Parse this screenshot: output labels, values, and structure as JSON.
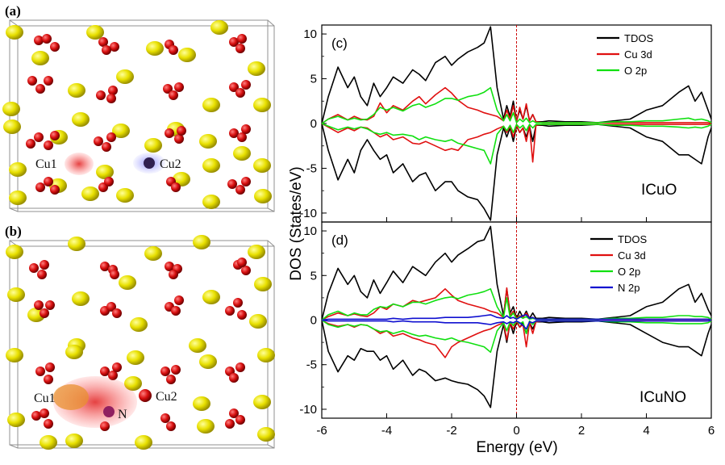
{
  "panels": {
    "a": {
      "label": "(a)",
      "atom_labels": [
        "Cu1",
        "Cu2"
      ]
    },
    "b": {
      "label": "(b)",
      "atom_labels": [
        "Cu1",
        "Cu2",
        "N"
      ]
    }
  },
  "colors": {
    "yellow_atom": "#e8e000",
    "red_atom": "#d81010",
    "TDOS": "#000000",
    "Cu 3d": "#e01010",
    "O 2p": "#10e010",
    "N 2p": "#1010d0",
    "fermi_line": "#cc0000"
  },
  "chart_data": [
    {
      "type": "line",
      "panel": "(c)",
      "name": "ICuO",
      "xlim": [
        -6,
        6
      ],
      "ylim": [
        -11,
        11
      ],
      "xticks": [
        -6,
        -4,
        -2,
        0,
        2,
        4,
        6
      ],
      "yticks": [
        -10,
        -5,
        0,
        5,
        10
      ],
      "ylabel": "DOS (States/eV)",
      "xlabel": "Energy (eV)",
      "fermi_level": 0,
      "legend": [
        "TDOS",
        "Cu 3d",
        "O 2p"
      ],
      "x": [
        -6.0,
        -5.8,
        -5.5,
        -5.2,
        -5.0,
        -4.8,
        -4.6,
        -4.4,
        -4.2,
        -4.0,
        -3.8,
        -3.5,
        -3.2,
        -3.0,
        -2.8,
        -2.5,
        -2.2,
        -2.0,
        -1.8,
        -1.5,
        -1.2,
        -1.0,
        -0.8,
        -0.6,
        -0.4,
        -0.3,
        -0.2,
        -0.1,
        0.0,
        0.1,
        0.2,
        0.3,
        0.4,
        0.5,
        0.6,
        0.8,
        1.0,
        1.5,
        2.0,
        2.5,
        3.0,
        3.5,
        4.0,
        4.5,
        5.0,
        5.3,
        5.5,
        5.7,
        5.9,
        6.0
      ],
      "series": [
        {
          "name": "TDOS",
          "values": [
            0.0,
            3.0,
            6.3,
            4.0,
            5.2,
            3.0,
            2.0,
            4.5,
            3.0,
            4.0,
            5.2,
            4.5,
            6.0,
            5.5,
            4.8,
            6.8,
            7.5,
            6.5,
            7.2,
            8.0,
            8.5,
            9.0,
            10.8,
            4.0,
            0.5,
            2.0,
            0.8,
            2.5,
            0.3,
            1.5,
            0.5,
            2.0,
            0.3,
            1.0,
            0.2,
            0.2,
            0.3,
            0.2,
            0.2,
            0.1,
            0.3,
            0.5,
            1.5,
            2.0,
            3.5,
            4.2,
            2.5,
            3.5,
            1.5,
            0.5
          ]
        },
        {
          "name": "Cu 3d",
          "values": [
            0.0,
            0.5,
            1.0,
            0.4,
            0.8,
            0.5,
            0.4,
            0.8,
            2.3,
            1.2,
            2.0,
            1.5,
            2.5,
            3.0,
            2.2,
            3.2,
            4.0,
            3.4,
            2.6,
            1.8,
            1.5,
            1.2,
            1.0,
            0.8,
            0.3,
            1.5,
            0.5,
            2.0,
            0.2,
            1.8,
            0.5,
            2.2,
            0.3,
            1.0,
            0.2,
            0.1,
            0.1,
            0.1,
            0.1,
            0.1,
            0.1,
            0.1,
            0.1,
            0.1,
            0.1,
            0.1,
            0.1,
            0.1,
            0.1,
            0.0
          ]
        },
        {
          "name": "O 2p",
          "values": [
            0.0,
            0.5,
            0.8,
            0.4,
            0.6,
            0.4,
            0.5,
            1.0,
            1.8,
            1.5,
            1.8,
            1.4,
            2.0,
            2.2,
            1.8,
            2.2,
            2.8,
            2.8,
            2.6,
            3.0,
            3.2,
            3.5,
            4.0,
            1.5,
            0.3,
            1.0,
            0.3,
            1.2,
            0.1,
            0.5,
            0.2,
            0.6,
            0.1,
            0.3,
            0.1,
            0.1,
            0.1,
            0.1,
            0.1,
            0.1,
            0.2,
            0.2,
            0.3,
            0.3,
            0.5,
            0.6,
            0.4,
            0.5,
            0.3,
            0.1
          ]
        }
      ],
      "series_neg": [
        {
          "name": "TDOS",
          "values": [
            0.0,
            -3.0,
            -6.3,
            -4.0,
            -5.5,
            -3.0,
            -1.8,
            -3.0,
            -4.0,
            -3.5,
            -5.5,
            -4.5,
            -6.5,
            -5.8,
            -5.5,
            -7.5,
            -6.5,
            -6.5,
            -7.5,
            -8.2,
            -8.5,
            -9.5,
            -10.8,
            -3.5,
            -0.5,
            -1.5,
            -0.5,
            -2.0,
            -0.3,
            -1.0,
            -0.5,
            -1.5,
            -0.3,
            -2.0,
            -0.2,
            -0.2,
            -0.3,
            -0.2,
            -0.2,
            -0.1,
            -0.3,
            -0.5,
            -1.5,
            -2.0,
            -3.5,
            -3.5,
            -4.0,
            -4.5,
            -1.5,
            -0.5
          ]
        },
        {
          "name": "Cu 3d",
          "values": [
            0.0,
            -0.4,
            -1.0,
            -0.5,
            -0.8,
            -0.4,
            -0.5,
            -1.0,
            -1.5,
            -1.2,
            -1.8,
            -1.5,
            -2.2,
            -2.3,
            -2.0,
            -2.5,
            -3.0,
            -2.8,
            -3.0,
            -1.8,
            -1.5,
            -1.2,
            -1.0,
            -0.6,
            -0.3,
            -1.0,
            -0.3,
            -1.5,
            -0.2,
            -1.0,
            -0.5,
            -2.0,
            -0.3,
            -4.3,
            -0.2,
            -0.1,
            -0.1,
            -0.1,
            -0.1,
            -0.1,
            -0.1,
            -0.1,
            -0.1,
            -0.1,
            -0.1,
            -0.1,
            -0.1,
            -0.1,
            -0.1,
            0.0
          ]
        },
        {
          "name": "O 2p",
          "values": [
            0.0,
            -0.3,
            -0.7,
            -0.4,
            -0.6,
            -0.4,
            -0.6,
            -1.0,
            -1.2,
            -1.0,
            -1.3,
            -1.2,
            -1.4,
            -1.8,
            -1.5,
            -1.8,
            -2.0,
            -1.8,
            -2.2,
            -2.5,
            -2.8,
            -3.0,
            -4.5,
            -1.2,
            -0.3,
            -0.8,
            -0.2,
            -1.0,
            -0.1,
            -0.5,
            -0.2,
            -0.8,
            -0.1,
            -0.5,
            -0.1,
            -0.1,
            -0.1,
            -0.1,
            -0.1,
            -0.1,
            -0.2,
            -0.2,
            -0.3,
            -0.3,
            -0.4,
            -0.5,
            -0.4,
            -0.5,
            -0.3,
            -0.1
          ]
        }
      ]
    },
    {
      "type": "line",
      "panel": "(d)",
      "name": "ICuNO",
      "xlim": [
        -6,
        6
      ],
      "ylim": [
        -11,
        11
      ],
      "xticks": [
        -6,
        -4,
        -2,
        0,
        2,
        4,
        6
      ],
      "yticks": [
        -10,
        -5,
        0,
        5,
        10
      ],
      "ylabel": "DOS (States/eV)",
      "xlabel": "Energy (eV)",
      "fermi_level": 0,
      "legend": [
        "TDOS",
        "Cu 3d",
        "O 2p",
        "N 2p"
      ],
      "x": [
        -6.0,
        -5.8,
        -5.5,
        -5.2,
        -5.0,
        -4.8,
        -4.6,
        -4.4,
        -4.2,
        -4.0,
        -3.8,
        -3.5,
        -3.2,
        -3.0,
        -2.8,
        -2.5,
        -2.2,
        -2.0,
        -1.8,
        -1.5,
        -1.2,
        -1.0,
        -0.8,
        -0.6,
        -0.4,
        -0.3,
        -0.2,
        -0.1,
        0.0,
        0.1,
        0.2,
        0.3,
        0.4,
        0.5,
        0.6,
        0.8,
        1.0,
        1.5,
        2.0,
        2.5,
        3.0,
        3.5,
        4.0,
        4.5,
        5.0,
        5.3,
        5.5,
        5.7,
        5.9,
        6.0
      ],
      "series": [
        {
          "name": "TDOS",
          "values": [
            0.0,
            3.0,
            5.8,
            4.0,
            5.0,
            3.2,
            2.5,
            4.5,
            3.0,
            4.2,
            5.5,
            4.2,
            6.0,
            5.5,
            5.0,
            6.5,
            7.5,
            6.5,
            7.3,
            8.0,
            8.8,
            9.0,
            10.5,
            4.0,
            0.5,
            3.5,
            0.8,
            1.5,
            0.2,
            1.0,
            0.3,
            1.0,
            0.2,
            0.8,
            0.2,
            0.2,
            0.3,
            0.2,
            0.2,
            0.1,
            0.3,
            0.5,
            1.5,
            2.0,
            3.5,
            4.0,
            2.0,
            3.0,
            1.2,
            0.5
          ]
        },
        {
          "name": "Cu 3d",
          "values": [
            0.0,
            0.4,
            0.8,
            0.5,
            0.7,
            0.5,
            0.4,
            0.8,
            1.5,
            1.2,
            1.8,
            1.5,
            2.2,
            2.0,
            2.2,
            2.5,
            3.5,
            2.8,
            2.2,
            1.8,
            1.5,
            1.3,
            1.0,
            0.8,
            0.3,
            3.6,
            0.5,
            1.0,
            0.2,
            0.5,
            0.3,
            0.8,
            0.2,
            0.3,
            0.1,
            0.1,
            0.1,
            0.1,
            0.1,
            0.1,
            0.1,
            0.1,
            0.1,
            0.1,
            0.1,
            0.1,
            0.1,
            0.1,
            0.1,
            0.0
          ]
        },
        {
          "name": "O 2p",
          "values": [
            0.0,
            0.6,
            1.0,
            0.5,
            0.8,
            0.6,
            0.6,
            1.2,
            1.5,
            1.4,
            1.8,
            1.5,
            2.0,
            2.0,
            1.8,
            2.2,
            2.5,
            2.6,
            2.4,
            2.8,
            3.0,
            3.2,
            3.5,
            1.5,
            0.3,
            2.5,
            0.3,
            0.8,
            0.1,
            0.4,
            0.2,
            0.4,
            0.1,
            0.2,
            0.1,
            0.1,
            0.1,
            0.1,
            0.1,
            0.1,
            0.2,
            0.2,
            0.3,
            0.3,
            0.5,
            0.5,
            0.4,
            0.4,
            0.3,
            0.1
          ]
        },
        {
          "name": "N 2p",
          "values": [
            0.0,
            0.1,
            0.1,
            0.1,
            0.1,
            0.1,
            0.1,
            0.1,
            0.1,
            0.1,
            0.2,
            0.1,
            0.2,
            0.2,
            0.2,
            0.2,
            0.3,
            0.3,
            0.3,
            0.3,
            0.4,
            0.5,
            0.6,
            0.3,
            0.2,
            0.5,
            0.2,
            0.3,
            0.1,
            0.3,
            0.5,
            0.6,
            0.2,
            0.3,
            0.1,
            0.1,
            0.1,
            0.1,
            0.1,
            0.1,
            0.1,
            0.1,
            0.1,
            0.1,
            0.1,
            0.1,
            0.1,
            0.1,
            0.1,
            0.0
          ]
        }
      ],
      "series_neg": [
        {
          "name": "TDOS",
          "values": [
            0.0,
            -3.5,
            -5.8,
            -4.0,
            -4.5,
            -3.2,
            -3.5,
            -3.5,
            -4.5,
            -4.0,
            -5.5,
            -4.5,
            -6.2,
            -5.5,
            -5.8,
            -6.8,
            -6.5,
            -6.8,
            -7.0,
            -7.2,
            -7.8,
            -8.5,
            -9.8,
            -3.5,
            -0.5,
            -2.5,
            -0.3,
            -1.5,
            -0.2,
            -0.8,
            -0.3,
            -1.5,
            -0.3,
            -1.0,
            -0.2,
            -0.2,
            -0.3,
            -0.2,
            -0.2,
            -0.1,
            -0.3,
            -0.5,
            -1.5,
            -2.5,
            -3.0,
            -3.0,
            -3.5,
            -4.0,
            -1.5,
            -0.5
          ]
        },
        {
          "name": "Cu 3d",
          "values": [
            0.0,
            -0.4,
            -0.7,
            -0.5,
            -0.8,
            -0.5,
            -0.6,
            -1.0,
            -1.5,
            -1.2,
            -1.8,
            -1.5,
            -2.0,
            -2.2,
            -2.5,
            -2.8,
            -4.2,
            -3.0,
            -2.5,
            -2.0,
            -1.5,
            -1.2,
            -1.0,
            -0.6,
            -0.3,
            -2.2,
            -0.3,
            -1.0,
            -0.1,
            -0.8,
            -0.5,
            -3.0,
            -0.3,
            -1.5,
            -0.2,
            -0.1,
            -0.1,
            -0.1,
            -0.1,
            -0.1,
            -0.1,
            -0.1,
            -0.1,
            -0.1,
            -0.1,
            -0.1,
            -0.1,
            -0.1,
            -0.1,
            0.0
          ]
        },
        {
          "name": "O 2p",
          "values": [
            0.0,
            -0.5,
            -0.8,
            -0.5,
            -0.7,
            -0.5,
            -0.6,
            -1.0,
            -1.3,
            -1.2,
            -1.5,
            -1.2,
            -1.6,
            -1.8,
            -1.7,
            -2.0,
            -2.2,
            -2.0,
            -2.3,
            -2.5,
            -2.8,
            -3.0,
            -3.6,
            -1.2,
            -0.3,
            -1.2,
            -0.2,
            -0.6,
            -0.1,
            -0.4,
            -0.2,
            -1.5,
            -0.1,
            -0.5,
            -0.1,
            -0.1,
            -0.1,
            -0.1,
            -0.1,
            -0.1,
            -0.2,
            -0.2,
            -0.3,
            -0.3,
            -0.4,
            -0.4,
            -0.4,
            -0.4,
            -0.3,
            -0.1
          ]
        },
        {
          "name": "N 2p",
          "values": [
            0.0,
            -0.1,
            -0.1,
            -0.1,
            -0.1,
            -0.1,
            -0.1,
            -0.1,
            -0.1,
            -0.1,
            -0.2,
            -0.1,
            -0.2,
            -0.2,
            -0.2,
            -0.2,
            -0.3,
            -0.3,
            -0.3,
            -0.3,
            -0.3,
            -0.4,
            -0.5,
            -0.3,
            -0.2,
            -0.4,
            -0.2,
            -0.3,
            -0.1,
            -0.3,
            -0.6,
            -1.0,
            -0.2,
            -0.3,
            -0.1,
            -0.1,
            -0.1,
            -0.1,
            -0.1,
            -0.1,
            -0.1,
            -0.1,
            -0.1,
            -0.1,
            -0.1,
            -0.1,
            -0.1,
            -0.1,
            -0.1,
            0.0
          ]
        }
      ]
    }
  ]
}
